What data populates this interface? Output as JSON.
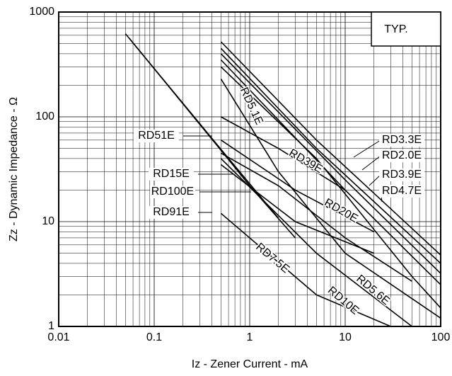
{
  "chart_data": {
    "type": "line",
    "annotation": "TYP.",
    "x_label": "Iz - Zener Current - mA",
    "y_label": "Zz - Dynamic Impedance - Ω",
    "log_x": true,
    "log_y": true,
    "grid": true,
    "minor_grid": true,
    "xlim": [
      0.01,
      100
    ],
    "xticks": [
      0.01,
      0.1,
      1,
      10,
      100
    ],
    "ylim": [
      1,
      1000
    ],
    "yticks": [
      1,
      10,
      100,
      1000
    ],
    "series": [
      {
        "name": "RD3.3E",
        "color": "#000000",
        "x": [
          0.5,
          5,
          100
        ],
        "values": [
          520,
          60,
          4.8
        ]
      },
      {
        "name": "RD2.0E",
        "color": "#000000",
        "x": [
          0.5,
          5,
          100
        ],
        "values": [
          450,
          50,
          4
        ]
      },
      {
        "name": "RD3.9E",
        "color": "#000000",
        "x": [
          0.5,
          10,
          100
        ],
        "values": [
          400,
          25,
          3.2
        ]
      },
      {
        "name": "RD4.7E",
        "color": "#000000",
        "x": [
          0.5,
          10,
          100
        ],
        "values": [
          350,
          20,
          2.5
        ]
      },
      {
        "name": "RD5.1E",
        "color": "#000000",
        "x": [
          0.5,
          5,
          50,
          100
        ],
        "values": [
          300,
          40,
          3,
          1.5
        ]
      },
      {
        "name": "RD39E",
        "color": "#000000",
        "x": [
          0.5,
          2,
          10
        ],
        "values": [
          100,
          50,
          20
        ]
      },
      {
        "name": "RD51E",
        "color": "#000000",
        "x": [
          0.05,
          0.5,
          1,
          2
        ],
        "values": [
          620,
          49,
          23,
          10.8
        ]
      },
      {
        "name": "RD15E",
        "color": "#000000",
        "x": [
          0.5,
          2,
          10,
          50
        ],
        "values": [
          45,
          22,
          7,
          2.7
        ]
      },
      {
        "name": "RD100E",
        "color": "#000000",
        "x": [
          0.055,
          0.5,
          1,
          3
        ],
        "values": [
          560,
          48,
          22,
          7
        ]
      },
      {
        "name": "RD91E",
        "color": "#000000",
        "x": [
          0.5,
          3,
          20
        ],
        "values": [
          35,
          10,
          5
        ]
      },
      {
        "name": "RD20E",
        "color": "#000000",
        "x": [
          0.5,
          3,
          20
        ],
        "values": [
          60,
          20,
          8
        ]
      },
      {
        "name": "RD7.5E",
        "color": "#000000",
        "x": [
          0.5,
          5,
          30
        ],
        "values": [
          12,
          2,
          1
        ]
      },
      {
        "name": "RD5.6E",
        "color": "#000000",
        "x": [
          0.5,
          2,
          10,
          100
        ],
        "values": [
          230,
          30,
          5,
          1.2
        ]
      },
      {
        "name": "RD10E",
        "color": "#000000",
        "x": [
          0.5,
          5,
          50
        ],
        "values": [
          40,
          5,
          1
        ]
      }
    ]
  }
}
